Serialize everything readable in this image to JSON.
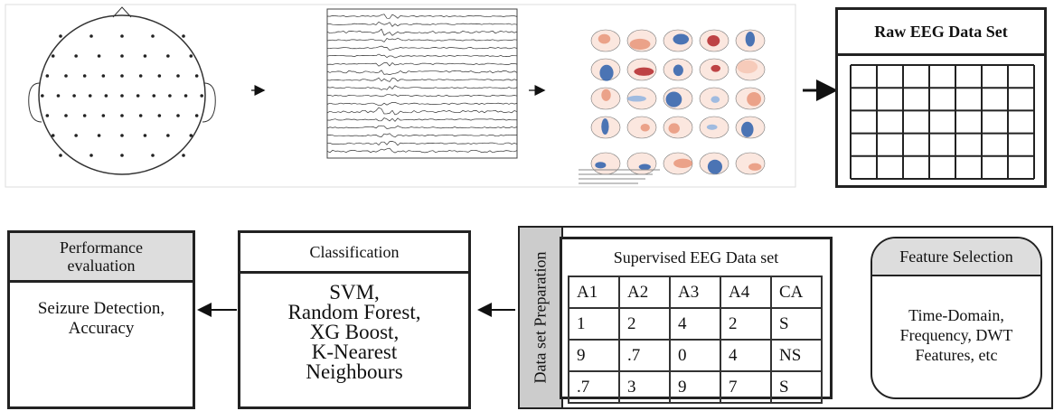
{
  "raw_data": {
    "title": "Raw EEG Data Set"
  },
  "performance": {
    "title": "Performance evaluation",
    "body": "Seizure Detection, Accuracy"
  },
  "classification": {
    "title": "Classification",
    "methods": [
      "SVM,",
      "Random Forest,",
      "XG Boost,",
      "K-Nearest",
      "Neighbours"
    ]
  },
  "data_prep": {
    "label": "Data set Preparation",
    "table": {
      "title": "Supervised EEG Data set",
      "header": [
        "A1",
        "A2",
        "A3",
        "A4",
        "CA"
      ],
      "rows": [
        [
          "1",
          "2",
          "4",
          "2",
          "S"
        ],
        [
          "9",
          ".7",
          "0",
          "4",
          "NS"
        ],
        [
          ".7",
          "3",
          "9",
          "7",
          "S"
        ]
      ]
    }
  },
  "feature_selection": {
    "title": "Feature Selection",
    "body": "Time-Domain, Frequency, DWT Features, etc"
  }
}
